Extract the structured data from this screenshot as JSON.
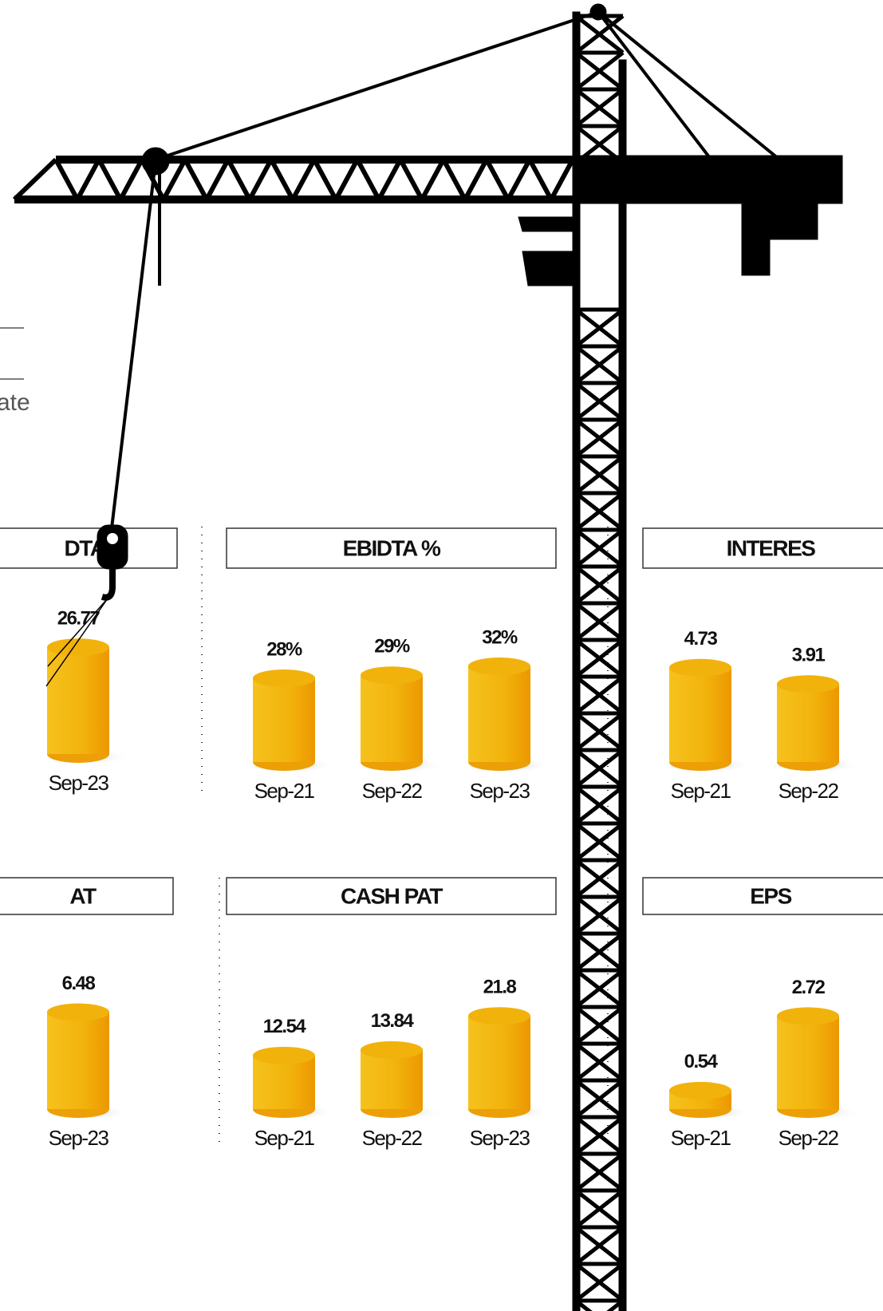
{
  "fragments": [
    "ate"
  ],
  "chart_data": [
    {
      "type": "cylinder",
      "title": "DTA",
      "categories": [
        "Sep-23"
      ],
      "values": [
        26.77
      ],
      "ylim": [
        0,
        30
      ],
      "color": "#f2b20c"
    },
    {
      "type": "cylinder",
      "title": "EBIDTA %",
      "categories": [
        "Sep-21",
        "Sep-22",
        "Sep-23"
      ],
      "values": [
        28,
        29,
        32
      ],
      "value_labels": [
        "28%",
        "29%",
        "32%"
      ],
      "ylim": [
        0,
        40
      ],
      "color": "#f2b20c"
    },
    {
      "type": "cylinder",
      "title": "INTERES",
      "categories": [
        "Sep-21",
        "Sep-22"
      ],
      "values": [
        4.73,
        3.91
      ],
      "ylim": [
        0,
        6
      ],
      "color": "#f2b20c"
    },
    {
      "type": "cylinder",
      "title": "AT",
      "categories": [
        "Sep-23"
      ],
      "values": [
        6.48
      ],
      "ylim": [
        0,
        8
      ],
      "color": "#f2b20c"
    },
    {
      "type": "cylinder",
      "title": "CASH PAT",
      "categories": [
        "Sep-21",
        "Sep-22",
        "Sep-23"
      ],
      "values": [
        12.54,
        13.84,
        21.8
      ],
      "ylim": [
        0,
        28
      ],
      "color": "#f2b20c"
    },
    {
      "type": "cylinder",
      "title": "EPS",
      "categories": [
        "Sep-21",
        "Sep-22"
      ],
      "values": [
        0.54,
        2.72
      ],
      "ylim": [
        0,
        3.5
      ],
      "color": "#f2b20c"
    }
  ]
}
